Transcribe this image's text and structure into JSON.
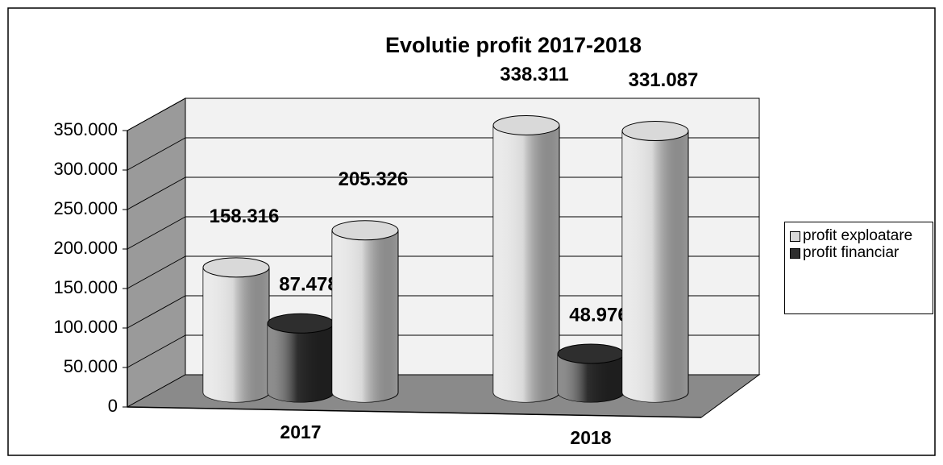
{
  "chart_data": {
    "type": "bar3d",
    "title": "Evolutie profit 2017-2018",
    "categories": [
      "2017",
      "2018"
    ],
    "series": [
      {
        "name": "profit exploatare",
        "color": "#d9d9d9",
        "values": [
          158316,
          338311
        ],
        "value_labels": [
          "158.316",
          "338.311"
        ]
      },
      {
        "name": "profit financiar",
        "color": "#2e2e2e",
        "values": [
          87478,
          48976
        ],
        "value_labels": [
          "87.478",
          "48.976"
        ]
      },
      {
        "name": null,
        "color": "#d9d9d9",
        "values": [
          205326,
          331087
        ],
        "value_labels": [
          "205.326",
          "331.087"
        ]
      }
    ],
    "ylim": [
      0,
      350000
    ],
    "yticks": [
      0,
      {
        "value": 50000,
        "label": "50.000"
      },
      {
        "value": 100000,
        "label": "100.000"
      },
      {
        "value": 150000,
        "label": "150.000"
      },
      {
        "value": 200000,
        "label": "200.000"
      },
      {
        "value": 250000,
        "label": "250.000"
      },
      {
        "value": 300000,
        "label": "300.000"
      },
      {
        "value": 350000,
        "label": "350.000"
      }
    ],
    "grid": true,
    "legend": "right"
  }
}
